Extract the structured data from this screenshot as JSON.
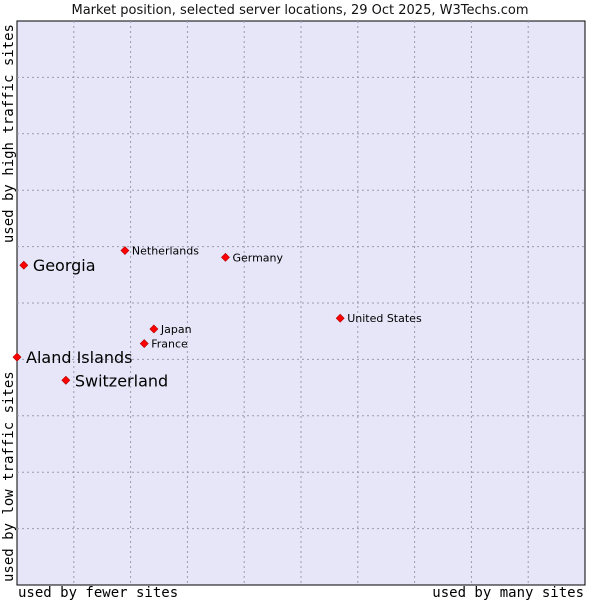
{
  "chart_data": {
    "type": "scatter",
    "title": "Market position, selected server locations, 29 Oct 2025, W3Techs.com",
    "xlabel_left": "used by fewer sites",
    "xlabel_right": "used by many sites",
    "ylabel_bottom": "used by low traffic sites",
    "ylabel_top": "used by high traffic sites",
    "xlim": [
      0,
      100
    ],
    "ylim": [
      0,
      100
    ],
    "grid": true,
    "marker_color": "#ff0000",
    "plot_bg": "#e6e6f8",
    "points": [
      {
        "name": "Netherlands",
        "x": 19.0,
        "y": 59.3,
        "emphasis": false
      },
      {
        "name": "Germany",
        "x": 36.7,
        "y": 58.1,
        "emphasis": false
      },
      {
        "name": "Georgia",
        "x": 1.2,
        "y": 56.7,
        "emphasis": true
      },
      {
        "name": "United States",
        "x": 56.9,
        "y": 47.3,
        "emphasis": false
      },
      {
        "name": "Japan",
        "x": 24.1,
        "y": 45.4,
        "emphasis": false
      },
      {
        "name": "France",
        "x": 22.4,
        "y": 42.8,
        "emphasis": false
      },
      {
        "name": "Aland Islands",
        "x": 0.0,
        "y": 40.4,
        "emphasis": true
      },
      {
        "name": "Switzerland",
        "x": 8.6,
        "y": 36.3,
        "emphasis": true
      }
    ]
  }
}
